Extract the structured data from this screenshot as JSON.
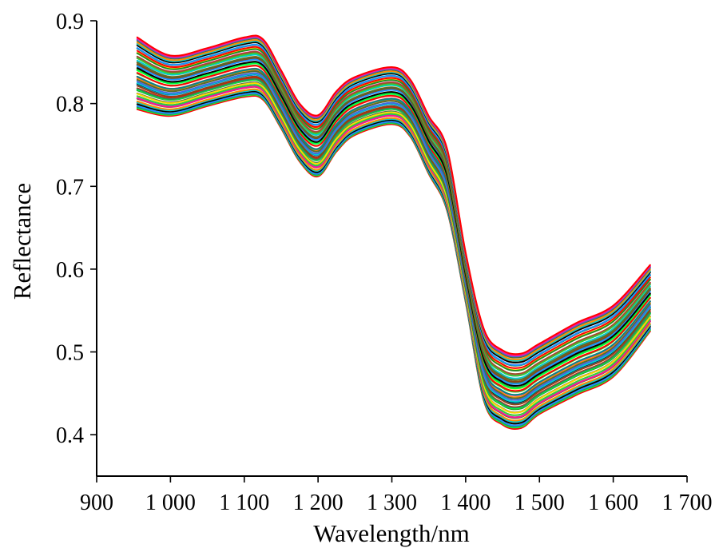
{
  "chart_data": {
    "type": "line",
    "title": "",
    "xlabel": "Wavelength/nm",
    "ylabel": "Reflectance",
    "xlim": [
      900,
      1700
    ],
    "ylim": [
      0.35,
      0.9
    ],
    "grid": false,
    "legend": "none",
    "x_ticks": [
      900,
      1000,
      1100,
      1200,
      1300,
      1400,
      1500,
      1600,
      1700
    ],
    "x_tick_labels": [
      "900",
      "1 000",
      "1 100",
      "1 200",
      "1 300",
      "1 400",
      "1 500",
      "1 600",
      "1 700"
    ],
    "y_ticks": [
      0.4,
      0.5,
      0.6,
      0.7,
      0.8,
      0.9
    ],
    "y_tick_labels": [
      "0.4",
      "0.5",
      "0.6",
      "0.7",
      "0.8",
      "0.9"
    ],
    "series_count": 60,
    "series_colors": [
      "#ff0000",
      "#00ff40",
      "#2e8b57",
      "#1e90ff",
      "#000000",
      "#8b4513",
      "#00ced1",
      "#ff8c00",
      "#556b2f",
      "#4169e1",
      "#ff1493",
      "#32cd32",
      "#a0522d",
      "#008b8b",
      "#ffd700",
      "#228b22"
    ],
    "wavelengths": [
      955,
      1000,
      1050,
      1100,
      1125,
      1150,
      1175,
      1200,
      1225,
      1250,
      1300,
      1325,
      1350,
      1375,
      1400,
      1425,
      1450,
      1475,
      1500,
      1550,
      1600,
      1650
    ],
    "reflectance_upper": [
      0.88,
      0.858,
      0.867,
      0.88,
      0.878,
      0.84,
      0.8,
      0.786,
      0.815,
      0.832,
      0.844,
      0.829,
      0.785,
      0.745,
      0.62,
      0.527,
      0.502,
      0.498,
      0.51,
      0.535,
      0.556,
      0.605
    ],
    "reflectance_lower": [
      0.793,
      0.785,
      0.797,
      0.808,
      0.805,
      0.77,
      0.73,
      0.712,
      0.742,
      0.762,
      0.775,
      0.76,
      0.715,
      0.67,
      0.56,
      0.44,
      0.412,
      0.408,
      0.425,
      0.448,
      0.47,
      0.525
    ]
  }
}
